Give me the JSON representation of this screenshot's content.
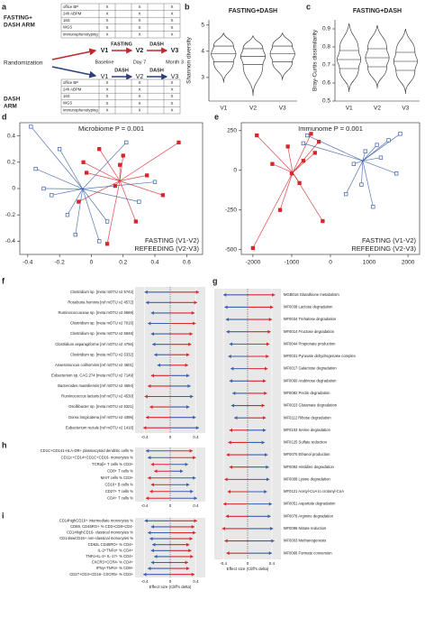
{
  "panel_a": {
    "label": "a",
    "arm1": [
      "FASTING+",
      "DASH ARM"
    ],
    "arm2": [
      "DASH",
      "ARM"
    ],
    "measures": [
      "office BP",
      "24h ABPM",
      "16S",
      "WGS",
      "immunophenotyping"
    ],
    "mark": "X",
    "randomization": "Randomization",
    "visits": [
      "V1",
      "V2",
      "V3"
    ],
    "times": [
      "Baseline",
      "Day 7",
      "Month 3"
    ],
    "interventions_top": [
      "FASTING",
      "DASH"
    ],
    "interventions_bottom": [
      "DASH",
      "DASH"
    ]
  },
  "chart_data": [
    {
      "type": "violin",
      "label": "b",
      "title": "FASTING+DASH",
      "y_label": "Shannon diversity",
      "categories": [
        "V1",
        "V2",
        "V3"
      ],
      "values": [
        3.9,
        3.8,
        3.9
      ],
      "q1": [
        3.6,
        3.5,
        3.6
      ],
      "q3": [
        4.2,
        4.1,
        4.2
      ],
      "min": [
        2.8,
        2.3,
        2.9
      ],
      "max": [
        4.7,
        4.6,
        4.7
      ],
      "color": "#222222",
      "ylim": [
        2.1,
        5.2
      ],
      "yticks": [
        3,
        4,
        5
      ]
    },
    {
      "type": "violin",
      "label": "c",
      "title": "FASTING+DASH",
      "y_label": "Bray-Curtis dissimilarity",
      "categories": [
        "V1",
        "V2",
        "V3"
      ],
      "values": [
        0.73,
        0.74,
        0.72
      ],
      "q1": [
        0.68,
        0.69,
        0.67
      ],
      "q3": [
        0.78,
        0.79,
        0.77
      ],
      "min": [
        0.55,
        0.57,
        0.54
      ],
      "max": [
        0.93,
        0.92,
        0.9
      ],
      "color": "#222222",
      "ylim": [
        0.5,
        0.95
      ],
      "yticks": [
        0.5,
        0.6,
        0.7,
        0.8,
        0.9
      ]
    },
    {
      "type": "biplot",
      "label": "d",
      "title": "Microbiome P = 0.001",
      "legend": "bottom-right",
      "series": [
        {
          "name": "FASTING (V1-V2)",
          "color": "#d7262c",
          "x": [
            0.55,
            0.05,
            -0.05,
            0.2,
            0.35,
            0.15,
            -0.08,
            0.28,
            0.45,
            0.1,
            -0.03,
            0.18
          ],
          "y": [
            0.35,
            0.3,
            0.2,
            0.25,
            0.1,
            0.02,
            -0.1,
            -0.25,
            -0.05,
            -0.42,
            0.12,
            0.18
          ]
        },
        {
          "name": "REFEEDING (V2-V3)",
          "color": "#3a5fa8",
          "x": [
            -0.38,
            -0.35,
            -0.25,
            -0.15,
            -0.1,
            0.05,
            0.3,
            0.4,
            -0.2,
            0.1,
            -0.3,
            0.22
          ],
          "y": [
            0.47,
            0.15,
            -0.05,
            -0.2,
            -0.35,
            -0.4,
            -0.1,
            0.05,
            0.3,
            -0.25,
            0.0,
            0.35
          ]
        }
      ],
      "xlim": [
        -0.45,
        0.7
      ],
      "xticks": [
        -0.4,
        -0.2,
        0,
        0.2,
        0.4,
        0.6
      ],
      "ylim": [
        -0.5,
        0.5
      ],
      "yticks": [
        -0.4,
        -0.2,
        0,
        0.2,
        0.4
      ]
    },
    {
      "type": "biplot",
      "label": "e",
      "title": "Immunome P = 0.001",
      "legend": "bottom-right",
      "series": [
        {
          "name": "FASTING (V1-V2)",
          "color": "#d7262c",
          "x": [
            -2000,
            -1300,
            -800,
            -1100,
            -1900,
            -500,
            -300,
            -1500,
            -700,
            -1000,
            -400,
            -200
          ],
          "y": [
            -490,
            -250,
            -80,
            150,
            220,
            230,
            180,
            40,
            60,
            -20,
            110,
            -320
          ]
        },
        {
          "name": "REFEEDING (V2-V3)",
          "color": "#3a5fa8",
          "x": [
            1800,
            1500,
            1200,
            900,
            1300,
            600,
            1700,
            800,
            400,
            1100,
            -600,
            -700
          ],
          "y": [
            230,
            190,
            160,
            120,
            80,
            40,
            -20,
            -90,
            -150,
            -230,
            220,
            170
          ]
        }
      ],
      "xlim": [
        -2300,
        2300
      ],
      "xticks": [
        -2000,
        -1000,
        0,
        1000,
        2000
      ],
      "ylim": [
        -530,
        300
      ],
      "yticks": [
        -500,
        -250,
        0,
        250
      ]
    },
    {
      "type": "dumbbell",
      "label": "f",
      "categories": [
        "Clostridium sp. [meta mOTU v2 5742]",
        "Roseburia hominis [ref mOTU v2 4572]",
        "Ruminococcaceae sp. [meta mOTU v2 5669]",
        "Clostridium sp. [meta mOTU v2 7016]",
        "Clostridium sp. [meta mOTU v2 5848]",
        "Clostridium asparagiforme [ref mOTU v2 4756]",
        "Clostridium sp. [meta mOTU v2 5332]",
        "Anaerotruncus colihominis [ref mOTU v2 4601]",
        "Eubacterium sp. CAG:274 [meta mOTU v2 7149]",
        "Bacteroides massiliensis [ref mOTU v2 4594]",
        "Ruminococcus lactaris [ref mOTU v2 4530]",
        "Oscillibacter sp. [meta mOTU v2 5321]",
        "Dorea longicatena [ref mOTU v2 4395]",
        "Eubacterium rectale [ref mOTU v2 1416]"
      ],
      "series": [
        {
          "color": "#d7262c",
          "values": [
            0.45,
            0.42,
            0.38,
            0.4,
            0.35,
            0.33,
            0.3,
            0.28,
            -0.3,
            -0.35,
            -0.4,
            -0.32,
            -0.38,
            -0.42
          ]
        },
        {
          "color": "#3a5fa8",
          "values": [
            -0.4,
            -0.38,
            -0.3,
            -0.35,
            -0.3,
            -0.28,
            -0.25,
            -0.2,
            0.3,
            0.32,
            0.36,
            0.3,
            0.4,
            0.45
          ]
        }
      ],
      "xlim": [
        -0.55,
        0.55
      ],
      "xticks": [
        -0.4,
        0,
        0.4
      ]
    },
    {
      "type": "dumbbell",
      "label": "g",
      "x_label": "Effect size (Cliff's delta)",
      "categories": [
        "MGB016 Glutathione metabolism",
        "MF0038 Lactose degradation",
        "MF0034 Trehalose degradation",
        "MF0014 Fructose degradation",
        "MF0044 Propionate production",
        "MF0031 Pyruvate dehydrogenase complex",
        "MF0017 Galactose degradation",
        "MF0060 Arabinose degradation",
        "MF0082 Pectin degradation",
        "MF0023 Glutamate degradation",
        "MF0112 Ribose degradation",
        "MF0103 Serine degradation",
        "MF0125 Sulfate reduction",
        "MF0070 Ethanol production",
        "MF0092 Histidine degradation",
        "MF0008 Lysine degradation",
        "MF0121 Acetyl-CoA to crotonyl-CoA",
        "MF0051 Aspartate degradation",
        "MF0076 Arginine degradation",
        "MF0096 Nitrate reduction",
        "MF0003 Methanogenesis",
        "MF0066 Formate conversion"
      ],
      "series": [
        {
          "color": "#d7262c",
          "values": [
            0.45,
            0.42,
            0.4,
            0.38,
            0.36,
            0.35,
            0.33,
            0.3,
            0.32,
            0.28,
            0.3,
            -0.3,
            -0.32,
            -0.35,
            -0.3,
            -0.38,
            -0.33,
            -0.4,
            -0.36,
            -0.42,
            -0.38,
            -0.35
          ]
        },
        {
          "color": "#3a5fa8",
          "values": [
            -0.4,
            -0.38,
            -0.36,
            -0.35,
            -0.3,
            -0.32,
            -0.28,
            -0.3,
            -0.25,
            -0.27,
            -0.22,
            0.3,
            0.28,
            0.33,
            0.35,
            0.36,
            0.32,
            0.4,
            0.38,
            0.42,
            0.44,
            0.4
          ]
        }
      ],
      "xlim": [
        -0.55,
        0.55
      ],
      "xticks": [
        -0.4,
        0,
        0.4
      ]
    },
    {
      "type": "dumbbell",
      "label": "h",
      "categories": [
        "CD1C+CD141-HLA-DR+ plasmacytoid dendritic cells %",
        "CD11c+CD14+CD1C+CD16- monocytes %",
        "TCRαβ+ T cells % CD3+",
        "CD8+ T cells %",
        "MAIT cells % CD3+",
        "CD16+ B cells %",
        "CD27+ T cells %",
        "CD4+ T cells %"
      ],
      "series": [
        {
          "color": "#d7262c",
          "values": [
            0.35,
            0.4,
            -0.3,
            -0.25,
            -0.35,
            -0.3,
            -0.32,
            -0.38
          ]
        },
        {
          "color": "#3a5fa8",
          "values": [
            -0.38,
            -0.35,
            0.28,
            0.2,
            0.4,
            0.3,
            0.36,
            0.42
          ]
        }
      ],
      "xlim": [
        -0.55,
        0.55
      ],
      "xticks": [
        -0.4,
        0,
        0.4
      ]
    },
    {
      "type": "dumbbell",
      "label": "i",
      "x_label": "Effect size (Cliff's delta)",
      "categories": [
        "CD14highCD16+ intermediate monocytes %",
        "CD69, CD45RO+ % CD3+CD8+CD4-",
        "CD14highCD16- classical monocytes %",
        "CD14lowCD16+ non-classical monocytes %",
        "CD62L CD45RO+ % CD4+",
        "IL-2+TNFα+ % CD4+",
        "TNFα+IL-2+ IL-17+ % CD4+",
        "CXCR3+CCR4- % CD4+",
        "IFNγ+TNFα+ % CD8+",
        "CD27+CD3+CD16- CXCR5+ % CD3+"
      ],
      "series": [
        {
          "color": "#d7262c",
          "values": [
            0.42,
            0.38,
            0.4,
            0.35,
            0.3,
            0.33,
            0.36,
            0.28,
            0.3,
            0.38
          ]
        },
        {
          "color": "#3a5fa8",
          "values": [
            -0.4,
            -0.3,
            -0.35,
            -0.32,
            -0.28,
            -0.3,
            -0.25,
            -0.3,
            -0.35,
            -0.42
          ]
        }
      ],
      "xlim": [
        -0.55,
        0.55
      ],
      "xticks": [
        -0.4,
        0,
        0.4
      ]
    }
  ]
}
